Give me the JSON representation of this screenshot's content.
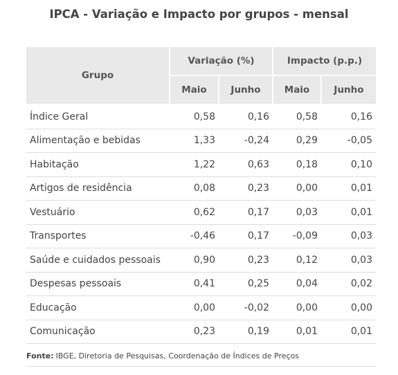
{
  "title": "IPCA - Variação e Impacto por grupos - mensal",
  "table": {
    "header": {
      "group": "Grupo",
      "variacao": "Variação (%)",
      "impacto": "Impacto (p.p.)",
      "months": [
        "Maio",
        "Junho",
        "Maio",
        "Junho"
      ]
    },
    "rows": [
      [
        "Índice Geral",
        "0,58",
        "0,16",
        "0,58",
        "0,16"
      ],
      [
        "Alimentação e bebidas",
        "1,33",
        "-0,24",
        "0,29",
        "-0,05"
      ],
      [
        "Habitação",
        "1,22",
        "0,63",
        "0,18",
        "0,10"
      ],
      [
        "Artigos de residência",
        "0,08",
        "0,23",
        "0,00",
        "0,01"
      ],
      [
        "Vestuário",
        "0,62",
        "0,17",
        "0,03",
        "0,01"
      ],
      [
        "Transportes",
        "-0,46",
        "0,17",
        "-0,09",
        "0,03"
      ],
      [
        "Saúde e cuidados pessoais",
        "0,90",
        "0,23",
        "0,12",
        "0,03"
      ],
      [
        "Despesas pessoais",
        "0,41",
        "0,25",
        "0,04",
        "0,02"
      ],
      [
        "Educação",
        "0,00",
        "-0,02",
        "0,00",
        "0,00"
      ],
      [
        "Comunicação",
        "0,23",
        "0,19",
        "0,01",
        "0,01"
      ]
    ]
  },
  "source": {
    "label": "Fonte:",
    "text": "IBGE, Diretoria de Pesquisas, Coordenação de Índices de Preços"
  }
}
